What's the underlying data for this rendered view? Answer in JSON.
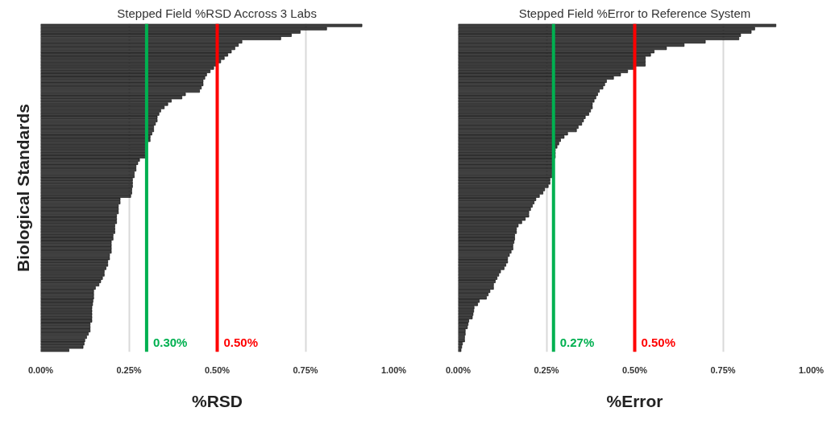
{
  "chart_data": [
    {
      "type": "bar",
      "orientation": "horizontal",
      "title": "Stepped Field %RSD Accross 3 Labs",
      "xlabel": "%RSD",
      "ylabel": "Biological Standards",
      "categories": [
        null,
        null,
        null,
        null,
        null,
        null,
        null,
        null,
        null,
        null,
        null,
        null,
        null,
        null,
        null,
        null,
        null,
        null,
        null,
        null,
        null,
        null,
        null,
        null,
        null,
        null,
        null,
        null,
        null,
        null,
        null,
        null,
        null,
        null,
        null,
        null,
        null,
        null,
        null,
        null,
        null,
        null,
        null,
        null,
        null,
        null,
        null,
        null,
        null,
        null,
        null,
        null,
        null,
        null,
        null,
        null,
        null,
        null,
        null,
        null,
        null,
        null,
        null,
        null,
        null,
        null,
        null,
        null,
        null,
        null,
        null,
        null,
        null,
        null,
        null,
        null,
        null,
        null,
        null,
        null,
        null,
        null,
        null,
        null,
        null,
        null,
        null,
        null,
        null,
        null,
        null,
        null,
        null,
        null,
        null,
        null,
        null,
        null,
        null,
        null
      ],
      "values": [
        0.91,
        0.81,
        0.735,
        0.71,
        0.68,
        0.57,
        0.56,
        0.55,
        0.54,
        0.53,
        0.52,
        0.51,
        0.5,
        0.49,
        0.48,
        0.47,
        0.465,
        0.46,
        0.46,
        0.455,
        0.45,
        0.41,
        0.4,
        0.37,
        0.36,
        0.35,
        0.34,
        0.335,
        0.33,
        0.33,
        0.325,
        0.32,
        0.32,
        0.315,
        0.31,
        0.31,
        0.3,
        0.3,
        0.3,
        0.3,
        0.3,
        0.28,
        0.275,
        0.27,
        0.27,
        0.265,
        0.265,
        0.26,
        0.26,
        0.26,
        0.258,
        0.258,
        0.255,
        0.225,
        0.225,
        0.22,
        0.22,
        0.22,
        0.215,
        0.215,
        0.215,
        0.21,
        0.21,
        0.21,
        0.205,
        0.205,
        0.2,
        0.2,
        0.2,
        0.2,
        0.195,
        0.195,
        0.19,
        0.19,
        0.185,
        0.18,
        0.18,
        0.175,
        0.17,
        0.165,
        0.155,
        0.15,
        0.15,
        0.15,
        0.148,
        0.147,
        0.145,
        0.145,
        0.145,
        0.145,
        0.145,
        0.14,
        0.14,
        0.14,
        0.135,
        0.13,
        0.125,
        0.123,
        0.12,
        0.08
      ],
      "color": "#404040",
      "xlim": [
        0,
        1.0
      ],
      "xticks": [
        {
          "value": 0,
          "label": "0.00%"
        },
        {
          "value": 0.25,
          "label": "0.25%"
        },
        {
          "value": 0.5,
          "label": "0.50%"
        },
        {
          "value": 0.75,
          "label": "0.75%"
        },
        {
          "value": 1.0,
          "label": "1.00%"
        }
      ],
      "grid": "x",
      "tick_labels": "x",
      "ref_lines": [
        {
          "axis": "x",
          "value": 0.3,
          "label": "0.30%",
          "color": "#00b050"
        },
        {
          "axis": "x",
          "value": 0.5,
          "label": "0.50%",
          "color": "#ff0000"
        }
      ]
    },
    {
      "type": "bar",
      "orientation": "horizontal",
      "title": "Stepped Field %Error to Reference System",
      "xlabel": "%Error",
      "categories": [
        null,
        null,
        null,
        null,
        null,
        null,
        null,
        null,
        null,
        null,
        null,
        null,
        null,
        null,
        null,
        null,
        null,
        null,
        null,
        null,
        null,
        null,
        null,
        null,
        null,
        null,
        null,
        null,
        null,
        null,
        null,
        null,
        null,
        null,
        null,
        null,
        null,
        null,
        null,
        null,
        null,
        null,
        null,
        null,
        null,
        null,
        null,
        null,
        null,
        null,
        null,
        null,
        null,
        null,
        null,
        null,
        null,
        null,
        null,
        null,
        null,
        null,
        null,
        null,
        null,
        null,
        null,
        null,
        null,
        null,
        null,
        null,
        null,
        null,
        null,
        null,
        null,
        null,
        null,
        null,
        null,
        null,
        null,
        null,
        null,
        null,
        null,
        null,
        null,
        null,
        null,
        null,
        null,
        null,
        null,
        null,
        null,
        null,
        null,
        null
      ],
      "values": [
        0.9,
        0.84,
        0.83,
        0.8,
        0.795,
        0.7,
        0.64,
        0.59,
        0.555,
        0.545,
        0.53,
        0.53,
        0.53,
        0.5,
        0.48,
        0.46,
        0.44,
        0.42,
        0.415,
        0.41,
        0.4,
        0.395,
        0.39,
        0.385,
        0.38,
        0.38,
        0.375,
        0.37,
        0.36,
        0.355,
        0.35,
        0.34,
        0.335,
        0.31,
        0.3,
        0.29,
        0.285,
        0.28,
        0.275,
        0.275,
        0.275,
        0.27,
        0.27,
        0.27,
        0.27,
        0.27,
        0.265,
        0.26,
        0.26,
        0.255,
        0.245,
        0.24,
        0.23,
        0.22,
        0.215,
        0.21,
        0.205,
        0.2,
        0.2,
        0.19,
        0.18,
        0.17,
        0.165,
        0.165,
        0.16,
        0.16,
        0.158,
        0.155,
        0.155,
        0.15,
        0.145,
        0.14,
        0.14,
        0.135,
        0.13,
        0.12,
        0.115,
        0.11,
        0.105,
        0.1,
        0.1,
        0.09,
        0.085,
        0.08,
        0.06,
        0.055,
        0.045,
        0.044,
        0.042,
        0.04,
        0.03,
        0.028,
        0.026,
        0.02,
        0.02,
        0.018,
        0.018,
        0.012,
        0.01,
        0.008
      ],
      "color": "#404040",
      "xlim": [
        0,
        1.0
      ],
      "xticks": [
        {
          "value": 0,
          "label": "0.00%"
        },
        {
          "value": 0.25,
          "label": "0.25%"
        },
        {
          "value": 0.5,
          "label": "0.50%"
        },
        {
          "value": 0.75,
          "label": "0.75%"
        },
        {
          "value": 1.0,
          "label": "1.00%"
        }
      ],
      "grid": "x",
      "tick_labels": "x",
      "ref_lines": [
        {
          "axis": "x",
          "value": 0.27,
          "label": "0.27%",
          "color": "#00b050"
        },
        {
          "axis": "x",
          "value": 0.5,
          "label": "0.50%",
          "color": "#ff0000"
        }
      ]
    }
  ]
}
